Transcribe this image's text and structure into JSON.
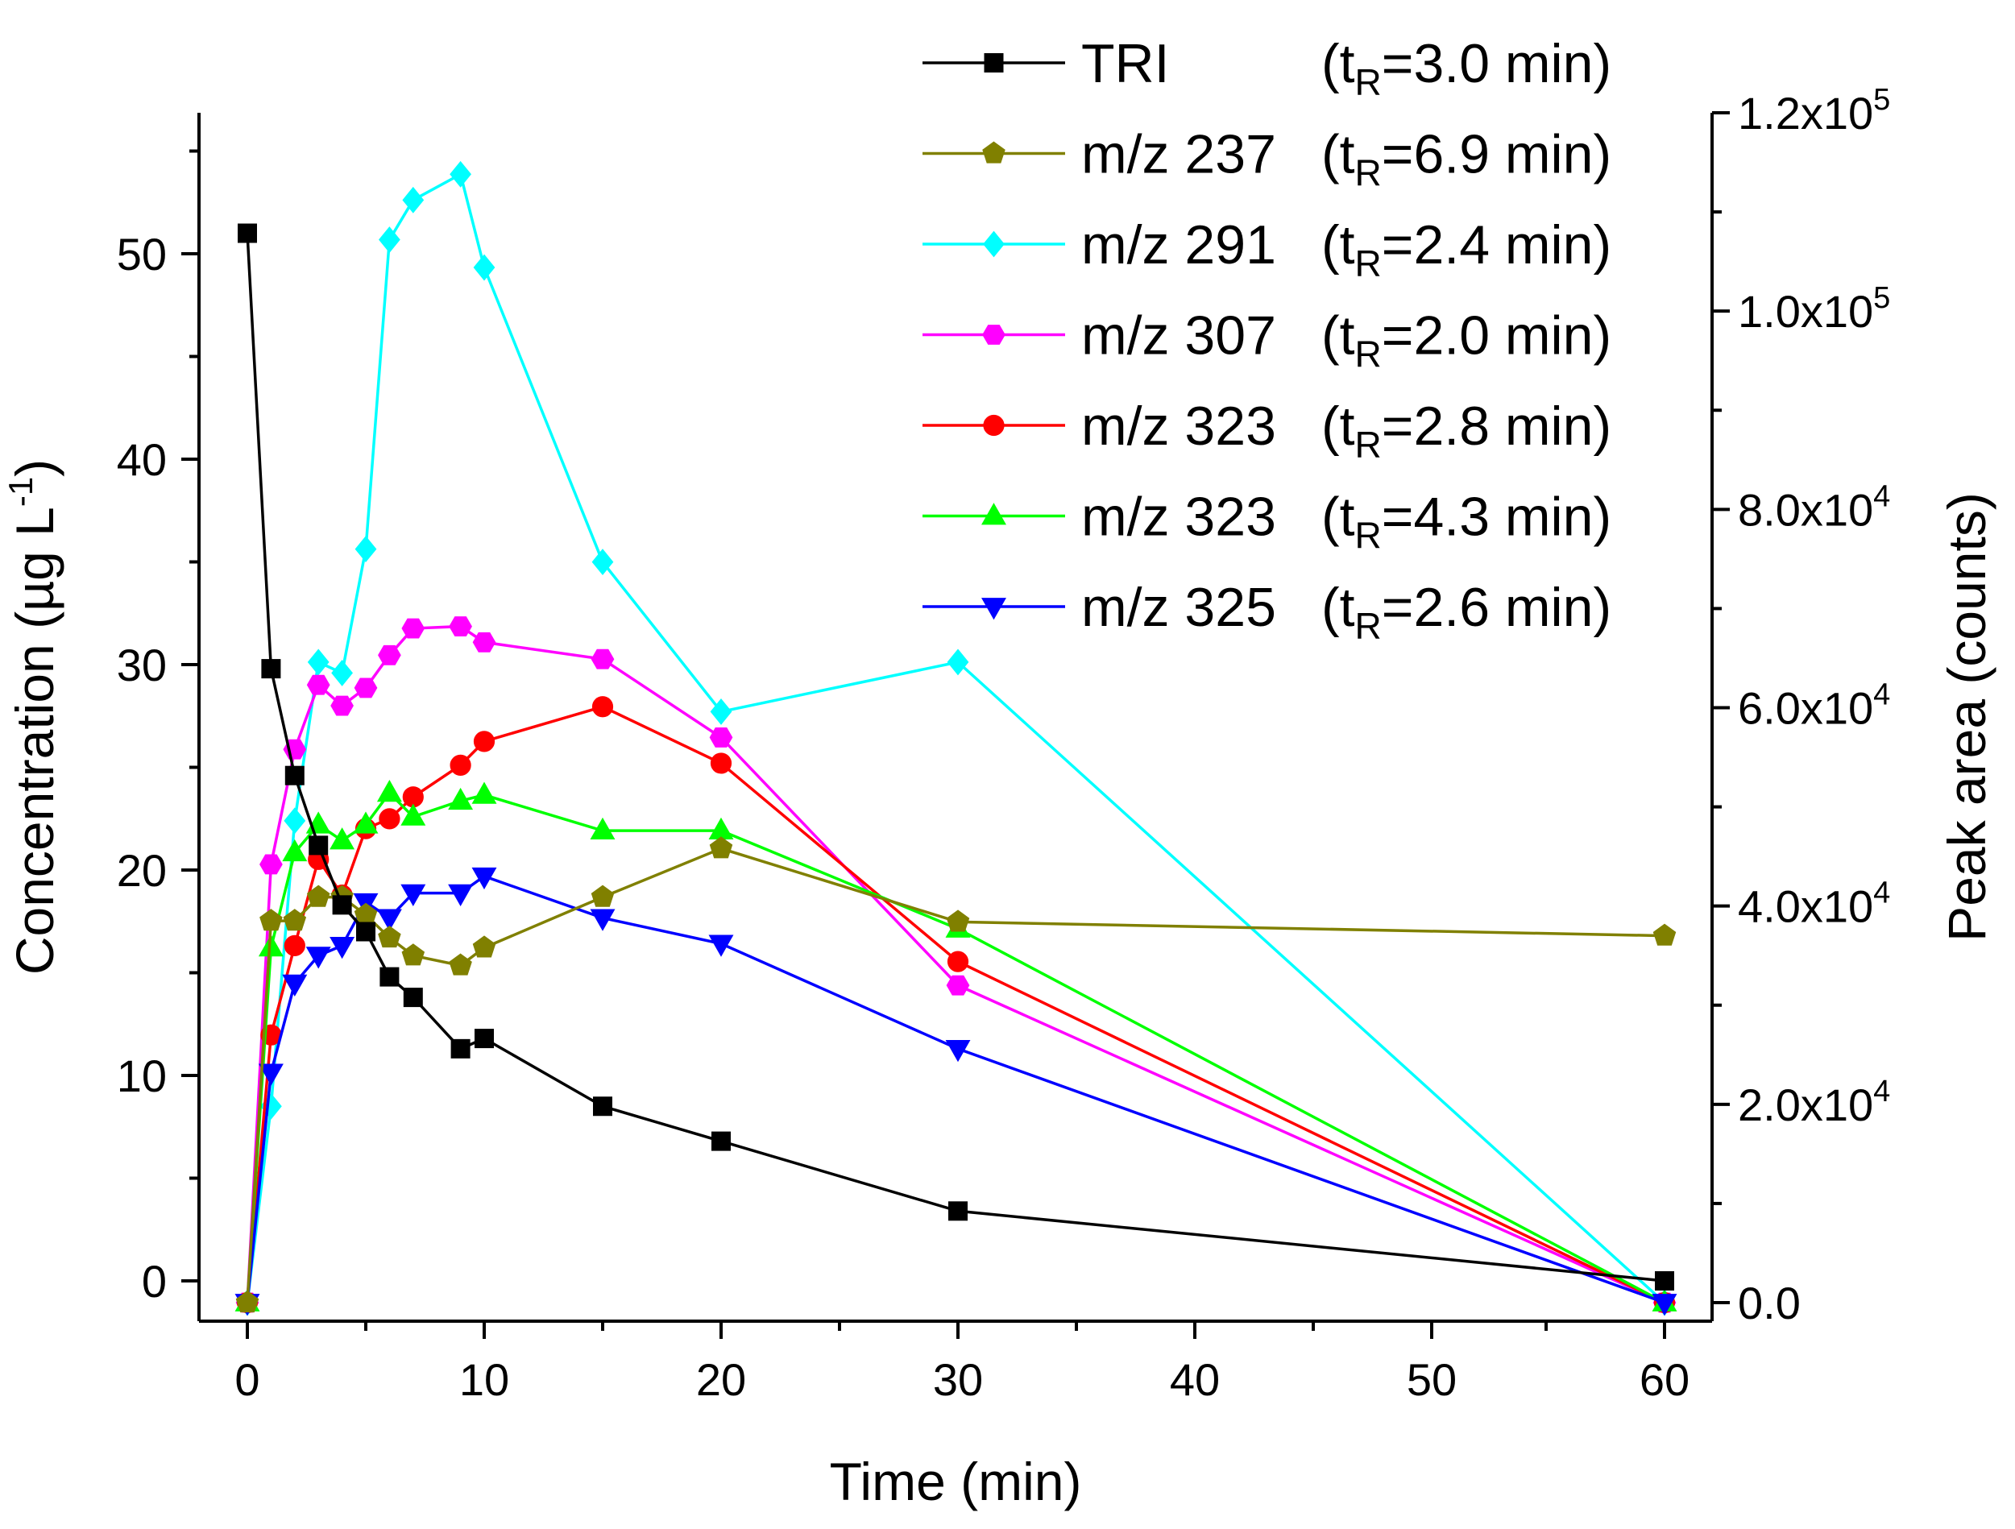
{
  "chart_data": {
    "type": "line",
    "xlabel": "Time (min)",
    "ylabel": "Concentration (µg L",
    "ylabel_sup": "-1",
    "ylabel_close": ")",
    "y2label": "Peak area (counts)",
    "x_ticks": [
      "0",
      "10",
      "20",
      "30",
      "40",
      "50",
      "60"
    ],
    "x_tick_values": [
      0,
      10,
      20,
      30,
      40,
      50,
      60
    ],
    "x_display_breakpoint": {
      "data_from": 30,
      "data_to": 60,
      "shown_as": 60,
      "note": "axis is linear 0-50 then jumps to 60"
    },
    "y_ticks": [
      "0",
      "10",
      "20",
      "30",
      "40",
      "50"
    ],
    "y_tick_values": [
      0,
      10,
      20,
      30,
      40,
      50
    ],
    "ylim": [
      -1.1,
      56
    ],
    "y2_ticks": [
      {
        "value": 0,
        "mant": "0.0",
        "exp": ""
      },
      {
        "value": 20000,
        "mant": "2.0x10",
        "exp": "4"
      },
      {
        "value": 40000,
        "mant": "4.0x10",
        "exp": "4"
      },
      {
        "value": 60000,
        "mant": "6.0x10",
        "exp": "4"
      },
      {
        "value": 80000,
        "mant": "8.0x10",
        "exp": "4"
      },
      {
        "value": 100000,
        "mant": "1.0x10",
        "exp": "5"
      },
      {
        "value": 120000,
        "mant": "1.2x10",
        "exp": "5"
      }
    ],
    "y2lim": [
      0,
      120000
    ],
    "legend_position": "top-right",
    "series": [
      {
        "name": "TRI",
        "legend_label": "TRI",
        "retention": "(t",
        "retention_sub": "R",
        "retention_rest": "=3.0 min)",
        "axis": "left",
        "color": "#000000",
        "marker": "square",
        "x": [
          0,
          1,
          2,
          3,
          4,
          5,
          6,
          7,
          9,
          10,
          15,
          20,
          30,
          60
        ],
        "y": [
          51.0,
          29.8,
          24.6,
          21.2,
          18.3,
          17.0,
          14.8,
          13.8,
          11.3,
          11.8,
          8.5,
          6.8,
          3.4,
          0.0
        ]
      },
      {
        "name": "m/z 237",
        "legend_label": "m/z 237 ",
        "retention": "(t",
        "retention_sub": "R",
        "retention_rest": "=6.9 min)",
        "axis": "right",
        "color": "#808000",
        "marker": "pentagon",
        "x": [
          0,
          1,
          2,
          3,
          4,
          5,
          6,
          7,
          9,
          10,
          15,
          20,
          30,
          60
        ],
        "y": [
          0,
          38500,
          38500,
          40900,
          40900,
          39100,
          36800,
          35000,
          34000,
          35800,
          40900,
          45800,
          38400,
          37000
        ]
      },
      {
        "name": "m/z 291",
        "legend_label": "m/z 291 ",
        "retention": "(t",
        "retention_sub": "R",
        "retention_rest": "=2.4 min)",
        "axis": "right",
        "color": "#00FFFF",
        "marker": "diamond",
        "x": [
          0,
          1,
          2,
          3,
          4,
          5,
          6,
          7,
          9,
          10,
          15,
          20,
          30,
          60
        ],
        "y": [
          0,
          19800,
          48600,
          64600,
          63500,
          76000,
          107200,
          111200,
          113800,
          104400,
          74700,
          59600,
          64600,
          0
        ]
      },
      {
        "name": "m/z 307",
        "legend_label": "m/z 307 ",
        "retention": "(t",
        "retention_sub": "R",
        "retention_rest": "=2.0 min)",
        "axis": "right",
        "color": "#FF00FF",
        "marker": "hexagon",
        "x": [
          0,
          1,
          2,
          3,
          4,
          5,
          6,
          7,
          9,
          10,
          15,
          20,
          30,
          60
        ],
        "y": [
          0,
          44200,
          55800,
          62300,
          60200,
          62000,
          65300,
          68000,
          68200,
          66600,
          64900,
          57000,
          32000,
          0
        ]
      },
      {
        "name": "m/z 323 (2.8)",
        "legend_label": "m/z 323 ",
        "retention": "(t",
        "retention_sub": "R",
        "retention_rest": "=2.8 min)",
        "axis": "right",
        "color": "#FF0000",
        "marker": "circle",
        "x": [
          0,
          1,
          2,
          3,
          4,
          5,
          6,
          7,
          9,
          10,
          15,
          20,
          30,
          60
        ],
        "y": [
          0,
          27000,
          36000,
          44700,
          41100,
          47800,
          48800,
          51000,
          54200,
          56600,
          60100,
          54400,
          34400,
          0
        ]
      },
      {
        "name": "m/z 323 (4.3)",
        "legend_label": "m/z 323 ",
        "retention": "(t",
        "retention_sub": "R",
        "retention_rest": "=4.3 min)",
        "axis": "right",
        "color": "#00FF00",
        "marker": "triangle-up",
        "x": [
          0,
          1,
          2,
          3,
          4,
          5,
          6,
          7,
          9,
          10,
          15,
          20,
          30,
          60
        ],
        "y": [
          0,
          35800,
          45400,
          48200,
          46600,
          48200,
          51400,
          49000,
          50600,
          51200,
          47600,
          47600,
          37700,
          0
        ]
      },
      {
        "name": "m/z 325",
        "legend_label": "m/z 325 ",
        "retention": "(t",
        "retention_sub": "R",
        "retention_rest": "=2.6 min)",
        "axis": "right",
        "color": "#0000FF",
        "marker": "triangle-down",
        "x": [
          0,
          1,
          2,
          3,
          4,
          5,
          6,
          7,
          9,
          10,
          15,
          20,
          30,
          60
        ],
        "y": [
          0,
          23200,
          32200,
          35000,
          36000,
          40400,
          38800,
          41300,
          41300,
          43000,
          38800,
          36200,
          25600,
          0
        ]
      }
    ]
  }
}
